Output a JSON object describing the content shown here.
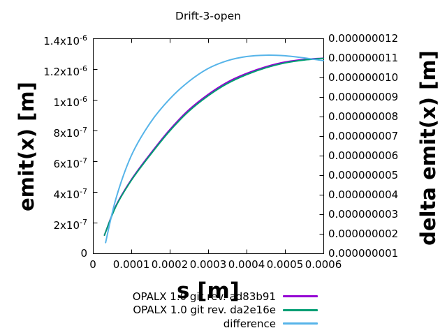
{
  "page": {
    "background": "#ffffff"
  },
  "chart_data": {
    "type": "line",
    "title": "Drift-3-open",
    "xlabel": "s [m]",
    "ylabel_left": "emit(x) [m]",
    "ylabel_right": "delta emit(x) [m]",
    "x_range": [
      0,
      0.0006
    ],
    "y_left_range": [
      0,
      1.4e-06
    ],
    "y_right_range": [
      1e-09,
      1.2e-08
    ],
    "grid": false,
    "legend_position": "below-right",
    "x_ticks": [
      {
        "value": 0,
        "label": "0"
      },
      {
        "value": 0.0001,
        "label": "0.0001"
      },
      {
        "value": 0.0002,
        "label": "0.0002"
      },
      {
        "value": 0.0003,
        "label": "0.0003"
      },
      {
        "value": 0.0004,
        "label": "0.0004"
      },
      {
        "value": 0.0005,
        "label": "0.0005"
      },
      {
        "value": 0.0006,
        "label": "0.0006"
      }
    ],
    "y_left_ticks": [
      {
        "value": 0,
        "label": "0"
      },
      {
        "value": 2e-07,
        "label": "2x10^-7"
      },
      {
        "value": 4e-07,
        "label": "4x10^-7"
      },
      {
        "value": 6e-07,
        "label": "6x10^-7"
      },
      {
        "value": 8e-07,
        "label": "8x10^-7"
      },
      {
        "value": 1e-06,
        "label": "1x10^-6"
      },
      {
        "value": 1.2e-06,
        "label": "1.2x10^-6"
      },
      {
        "value": 1.4e-06,
        "label": "1.4x10^-6"
      }
    ],
    "y_right_ticks": [
      {
        "value": 1e-09,
        "label": "0.000000001"
      },
      {
        "value": 2e-09,
        "label": "0.000000002"
      },
      {
        "value": 3e-09,
        "label": "0.000000003"
      },
      {
        "value": 4e-09,
        "label": "0.000000004"
      },
      {
        "value": 5e-09,
        "label": "0.000000005"
      },
      {
        "value": 6e-09,
        "label": "0.000000006"
      },
      {
        "value": 7e-09,
        "label": "0.000000007"
      },
      {
        "value": 8e-09,
        "label": "0.000000008"
      },
      {
        "value": 9e-09,
        "label": "0.000000009"
      },
      {
        "value": 1e-08,
        "label": "0.000000010"
      },
      {
        "value": 1.1e-08,
        "label": "0.000000011"
      },
      {
        "value": 1.2e-08,
        "label": "0.000000012"
      }
    ],
    "series": [
      {
        "name": "OPALX 1.0 git rev. ad83b91",
        "color": "#9400d3",
        "axis": "left",
        "x": [
          3e-05,
          6e-05,
          0.0001,
          0.00015,
          0.0002,
          0.00025,
          0.0003,
          0.00035,
          0.0004,
          0.00045,
          0.0005,
          0.00055,
          0.0006
        ],
        "y": [
          1.18e-07,
          3.1e-07,
          4.8e-07,
          6.5e-07,
          8.05e-07,
          9.35e-07,
          1.035e-06,
          1.115e-06,
          1.172e-06,
          1.215e-06,
          1.246e-06,
          1.263e-06,
          1.271e-06
        ]
      },
      {
        "name": "OPALX 1.0 git rev. da2e16e",
        "color": "#009e73",
        "axis": "left",
        "x": [
          3e-05,
          6e-05,
          0.0001,
          0.00015,
          0.0002,
          0.00025,
          0.0003,
          0.00035,
          0.0004,
          0.00045,
          0.0005,
          0.00055,
          0.0006
        ],
        "y": [
          1.18e-07,
          3.06e-07,
          4.75e-07,
          6.43e-07,
          7.97e-07,
          9.26e-07,
          1.026e-06,
          1.106e-06,
          1.164e-06,
          1.208e-06,
          1.24e-06,
          1.259e-06,
          1.27e-06
        ]
      },
      {
        "name": "difference",
        "color": "#56b4e9",
        "axis": "right",
        "x": [
          3.3e-05,
          6e-05,
          0.0001,
          0.00015,
          0.0002,
          0.00025,
          0.0003,
          0.00035,
          0.0004,
          0.00045,
          0.0005,
          0.00055,
          0.0006
        ],
        "y": [
          1.55e-09,
          3.8e-09,
          6e-09,
          7.7e-09,
          8.9e-09,
          9.8e-09,
          1.046e-08,
          1.086e-08,
          1.107e-08,
          1.114e-08,
          1.111e-08,
          1.1e-08,
          1.086e-08
        ]
      }
    ]
  }
}
